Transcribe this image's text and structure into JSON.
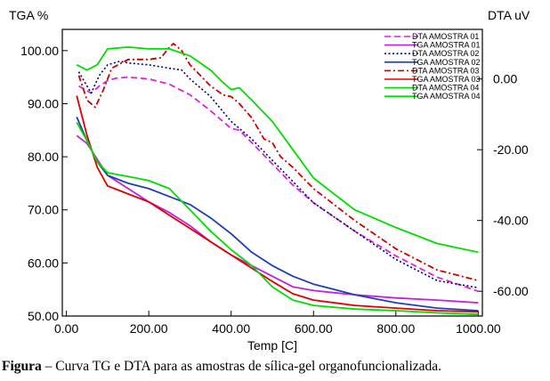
{
  "chart_data": {
    "type": "line",
    "title": "",
    "xlabel": "Temp  [C]",
    "ylabel_left": "TGA %",
    "ylabel_right": "DTA uV",
    "xlim": [
      -10,
      1010
    ],
    "ylim_left": [
      50,
      104
    ],
    "ylim_right": [
      -67,
      14
    ],
    "x_ticks": [
      "0.00",
      "200.00",
      "400.00",
      "600.00",
      "800.00",
      "1000.00"
    ],
    "y_left_ticks": [
      "50.00",
      "60.00",
      "70.00",
      "80.00",
      "90.00",
      "100.00"
    ],
    "y_right_ticks": [
      "0.00",
      "-20.00",
      "-40.00",
      "-60.00"
    ],
    "legend_position": "top-right",
    "series": [
      {
        "name": "DTA AMOSTRA 01",
        "axis": "right",
        "color": "#e020e0",
        "dash": "dash",
        "x": [
          30,
          60,
          80,
          100,
          120,
          150,
          200,
          250,
          300,
          350,
          380,
          400,
          420,
          450,
          500,
          550,
          600,
          700,
          800,
          900,
          1000
        ],
        "y": [
          -2,
          -4,
          -2,
          -0.5,
          0.2,
          0.5,
          0,
          -1.5,
          -4.5,
          -9,
          -12,
          -14,
          -14.5,
          -18,
          -24,
          -30,
          -35,
          -43,
          -50,
          -56,
          -60
        ]
      },
      {
        "name": "TGA AMOSTRA 01",
        "axis": "left",
        "color": "#c020e0",
        "dash": "solid",
        "x": [
          25,
          50,
          75,
          100,
          150,
          200,
          250,
          300,
          350,
          400,
          450,
          500,
          550,
          600,
          650,
          700,
          800,
          900,
          1000
        ],
        "y": [
          84,
          82.5,
          79.5,
          76.5,
          74,
          71.5,
          69.5,
          67,
          64,
          61.5,
          59.5,
          57.5,
          55.5,
          54.8,
          54.4,
          54,
          53.4,
          53,
          52.5
        ]
      },
      {
        "name": "DTA AMOSTRA 02",
        "axis": "right",
        "color": "#000080",
        "dash": "dot",
        "x": [
          30,
          60,
          80,
          100,
          130,
          150,
          200,
          250,
          280,
          300,
          350,
          400,
          450,
          500,
          550,
          600,
          700,
          800,
          900,
          1000
        ],
        "y": [
          2,
          -4,
          1,
          4,
          5,
          4.5,
          4,
          3,
          2.5,
          0,
          -5,
          -12,
          -17,
          -23,
          -29,
          -35,
          -43,
          -51,
          -57,
          -59
        ]
      },
      {
        "name": "TGA AMOSTRA 02",
        "axis": "left",
        "color": "#1e3fb5",
        "dash": "solid",
        "x": [
          25,
          50,
          75,
          100,
          150,
          200,
          250,
          300,
          350,
          400,
          450,
          500,
          550,
          600,
          700,
          800,
          900,
          1000
        ],
        "y": [
          87.5,
          83,
          79,
          76.5,
          75,
          74,
          72.5,
          71,
          68.5,
          65.5,
          62,
          59.5,
          57.5,
          56,
          54,
          52.5,
          51.5,
          51
        ]
      },
      {
        "name": "DTA AMOSTRA 03",
        "axis": "right",
        "color": "#cc0000",
        "dash": "dashdot",
        "x": [
          30,
          50,
          70,
          90,
          110,
          150,
          200,
          230,
          250,
          260,
          280,
          300,
          350,
          380,
          400,
          420,
          450,
          480,
          500,
          520,
          550,
          600,
          700,
          800,
          900,
          1000
        ],
        "y": [
          1,
          -6,
          -8,
          -3,
          3,
          5.5,
          5.5,
          6,
          9,
          10,
          8,
          4,
          -2,
          -4.5,
          -5,
          -7,
          -11,
          -17,
          -18,
          -22,
          -25,
          -31,
          -40,
          -48,
          -54,
          -57
        ]
      },
      {
        "name": "TGA AMOSTRA 03",
        "axis": "left",
        "color": "#dd0000",
        "dash": "solid",
        "x": [
          25,
          50,
          75,
          100,
          150,
          200,
          250,
          300,
          350,
          400,
          450,
          500,
          550,
          600,
          700,
          800,
          900,
          1000
        ],
        "y": [
          91.5,
          84,
          78,
          74.5,
          73,
          71.5,
          69,
          66.5,
          64,
          61.5,
          59,
          56.5,
          54.2,
          53,
          52,
          51.5,
          51,
          50.8
        ]
      },
      {
        "name": "DTA AMOSTRA 04",
        "axis": "right",
        "color": "#00dd00",
        "dash": "solid",
        "x": [
          25,
          50,
          75,
          100,
          150,
          200,
          250,
          300,
          350,
          380,
          400,
          420,
          450,
          500,
          550,
          600,
          700,
          800,
          900,
          1000
        ],
        "y": [
          4,
          2.5,
          4,
          8.5,
          9,
          8.5,
          8.5,
          6.5,
          2.5,
          -1,
          -3,
          -2.5,
          -6,
          -12,
          -20,
          -28,
          -37,
          -42,
          -46.5,
          -49
        ]
      },
      {
        "name": "TGA AMOSTRA 04",
        "axis": "left",
        "color": "#00dd00",
        "dash": "solid",
        "x": [
          25,
          50,
          75,
          100,
          150,
          200,
          250,
          300,
          350,
          400,
          450,
          500,
          550,
          600,
          700,
          800,
          900,
          1000
        ],
        "y": [
          86.5,
          83,
          79,
          77,
          76.3,
          75.5,
          74,
          70,
          66,
          62.5,
          59.5,
          55.5,
          53,
          52,
          51.3,
          51,
          50.6,
          50.3
        ]
      }
    ]
  },
  "caption": {
    "label": "Figura",
    "text": " – Curva TG e DTA para as amostras de sílica-gel organofuncionalizada."
  }
}
